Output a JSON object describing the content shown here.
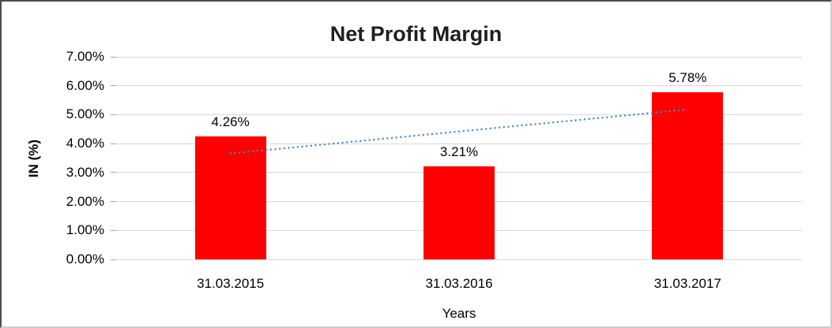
{
  "chart_data": {
    "type": "bar",
    "title": "Net Profit Margin",
    "categories": [
      "31.03.2015",
      "31.03.2016",
      "31.03.2017"
    ],
    "values": [
      4.26,
      3.21,
      5.78
    ],
    "value_labels": [
      "4.26%",
      "3.21%",
      "5.78%"
    ],
    "xlabel": "Years",
    "ylabel": "IN (%)",
    "ylim": [
      0,
      7
    ],
    "ytick_step": 1,
    "ytick_labels": [
      "0.00%",
      "1.00%",
      "2.00%",
      "3.00%",
      "4.00%",
      "5.00%",
      "6.00%",
      "7.00%"
    ],
    "grid": true,
    "legend": "none",
    "bar_color": "#ff0000",
    "gridline_color": "#d9d9d9",
    "trendline": {
      "type": "linear",
      "style": "dotted",
      "color": "#4a86c8",
      "start_value": 3.66,
      "end_value": 5.18
    }
  }
}
